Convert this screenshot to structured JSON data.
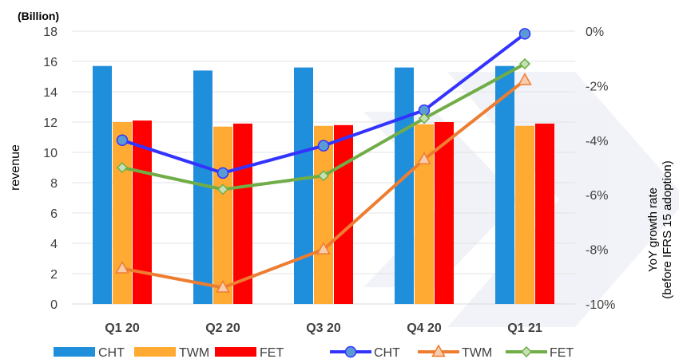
{
  "chart_data": {
    "type": "bar",
    "unit_label": "(Billion)",
    "ylabel": "revenue",
    "ylabel_right": [
      "YoY growth rate",
      "(before IFRS 15 adoption)"
    ],
    "categories": [
      "Q1 20",
      "Q2 20",
      "Q3 20",
      "Q4 20",
      "Q1 21"
    ],
    "ylim": [
      0,
      18
    ],
    "yticks": [
      0,
      2,
      4,
      6,
      8,
      10,
      12,
      14,
      16,
      18
    ],
    "y2lim": [
      -10,
      0
    ],
    "y2ticks": [
      0,
      -2,
      -4,
      -6,
      -8,
      -10
    ],
    "y2ticklabels": [
      "0%",
      "-2%",
      "-4%",
      "-6%",
      "-8%",
      "-10%"
    ],
    "bar_series": [
      {
        "name": "CHT",
        "color": "#1f8fdc",
        "values": [
          15.7,
          15.4,
          15.6,
          15.6,
          15.7
        ]
      },
      {
        "name": "TWM",
        "color": "#ffaa33",
        "values": [
          12.0,
          11.7,
          11.75,
          11.85,
          11.75
        ]
      },
      {
        "name": "FET",
        "color": "#ff0000",
        "values": [
          12.1,
          11.9,
          11.8,
          12.0,
          11.9
        ]
      }
    ],
    "line_series": [
      {
        "name": "CHT",
        "color": "#3333ff",
        "marker": "circle",
        "marker_fill": "#5b9bd5",
        "values": [
          -4.0,
          -5.2,
          -4.2,
          -2.9,
          -0.1
        ]
      },
      {
        "name": "TWM",
        "color": "#ed7d31",
        "marker": "triangle",
        "marker_fill": "#f8cbad",
        "values": [
          -8.7,
          -9.4,
          -8.0,
          -4.7,
          -1.8
        ]
      },
      {
        "name": "FET",
        "color": "#70ad47",
        "marker": "diamond",
        "marker_fill": "#c5e0b4",
        "values": [
          -5.0,
          -5.8,
          -5.3,
          -3.2,
          -1.2
        ]
      }
    ],
    "grid": true,
    "legend_position": "bottom"
  }
}
